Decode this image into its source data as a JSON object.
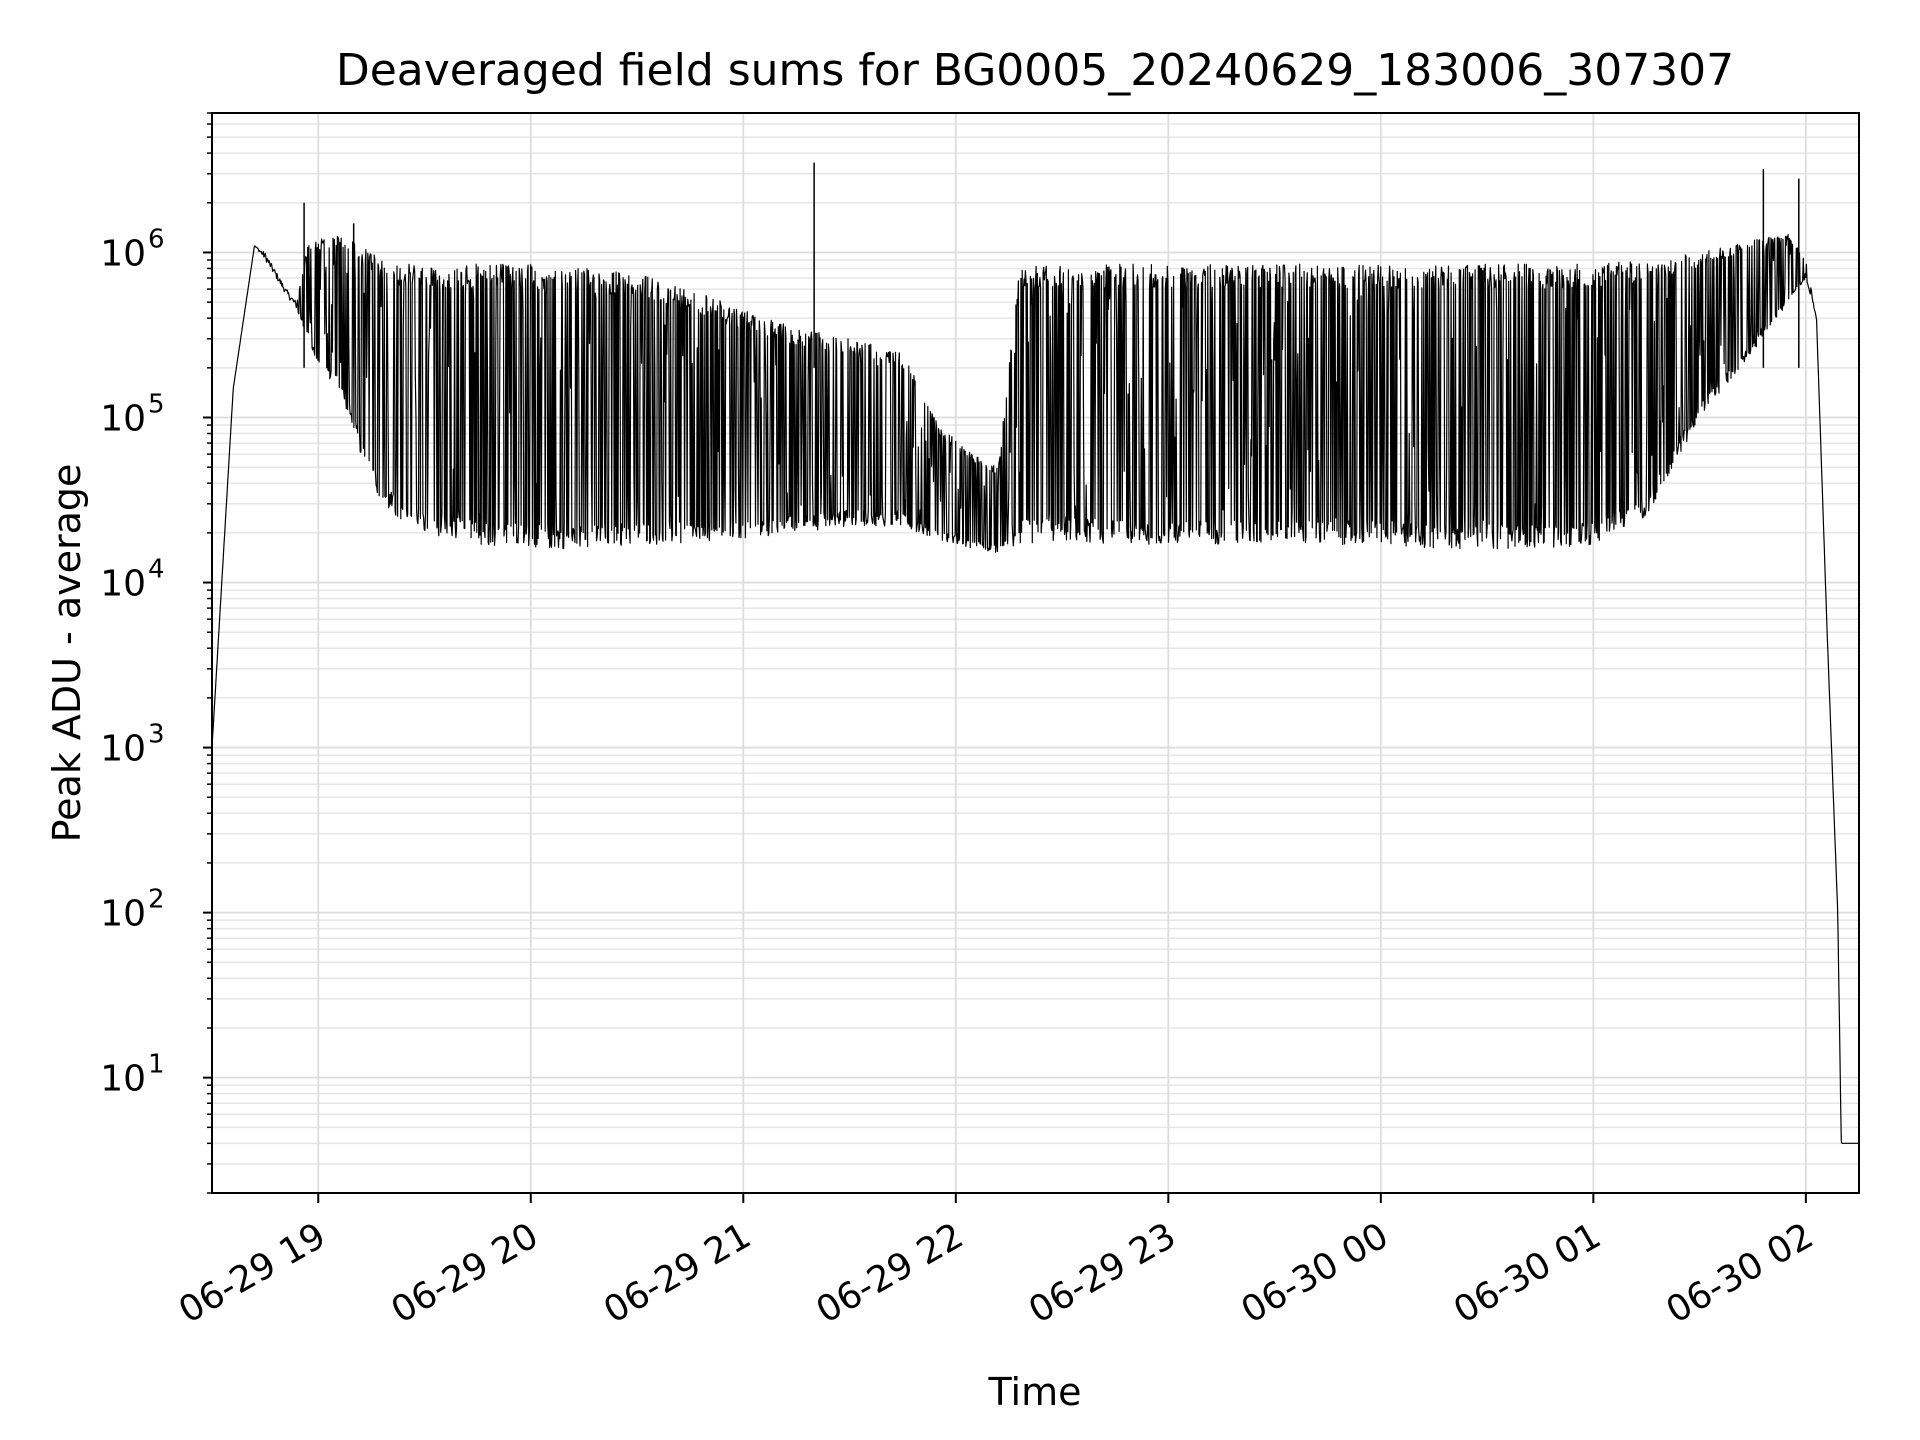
{
  "chart_data": {
    "type": "line",
    "title": "Deaveraged field sums for BG0005_20240629_183006_307307",
    "xlabel": "Time",
    "ylabel": "Peak ADU - average",
    "y_scale": "log",
    "ylim": [
      2,
      7000000
    ],
    "xlim": [
      "2024-06-29 18:30",
      "2024-06-30 02:15"
    ],
    "grid": true,
    "line_color": "#000000",
    "x_tick_labels": [
      "06-29 19",
      "06-29 20",
      "06-29 21",
      "06-29 22",
      "06-29 23",
      "06-30 00",
      "06-30 01",
      "06-30 02"
    ],
    "x_ticks": [
      "2024-06-29 19:00",
      "2024-06-29 20:00",
      "2024-06-29 21:00",
      "2024-06-29 22:00",
      "2024-06-29 23:00",
      "2024-06-30 00:00",
      "2024-06-30 01:00",
      "2024-06-30 02:00"
    ],
    "y_ticks": [
      {
        "base": "10",
        "exp": "1",
        "value": 10
      },
      {
        "base": "10",
        "exp": "2",
        "value": 100
      },
      {
        "base": "10",
        "exp": "3",
        "value": 1000
      },
      {
        "base": "10",
        "exp": "4",
        "value": 10000
      },
      {
        "base": "10",
        "exp": "5",
        "value": 100000
      },
      {
        "base": "10",
        "exp": "6",
        "value": 1000000
      }
    ],
    "series": [
      {
        "x": [
          "2024-06-29 18:30",
          "2024-06-29 18:36",
          "2024-06-29 18:42",
          "2024-06-29 18:45",
          "2024-06-29 18:51",
          "2024-06-29 18:54",
          "2024-06-29 18:57",
          "2024-06-29 19:00",
          "2024-06-29 19:06",
          "2024-06-29 19:12",
          "2024-06-29 19:18",
          "2024-06-29 19:24",
          "2024-06-29 19:30",
          "2024-06-29 19:45",
          "2024-06-29 20:00",
          "2024-06-29 20:15",
          "2024-06-29 20:30",
          "2024-06-29 20:45",
          "2024-06-29 21:00",
          "2024-06-29 21:15",
          "2024-06-29 21:30",
          "2024-06-29 21:45",
          "2024-06-29 21:55",
          "2024-06-29 22:05",
          "2024-06-29 22:12",
          "2024-06-29 22:18",
          "2024-06-29 22:30",
          "2024-06-29 22:45",
          "2024-06-29 23:00",
          "2024-06-29 23:15",
          "2024-06-29 23:30",
          "2024-06-29 23:45",
          "2024-06-30 00:00",
          "2024-06-30 00:15",
          "2024-06-30 00:30",
          "2024-06-30 00:45",
          "2024-06-30 01:00",
          "2024-06-30 01:15",
          "2024-06-30 01:30",
          "2024-06-30 01:45",
          "2024-06-30 01:55",
          "2024-06-30 02:00",
          "2024-06-30 02:03",
          "2024-06-30 02:06",
          "2024-06-30 02:09",
          "2024-06-30 02:10",
          "2024-06-30 02:15"
        ],
        "lower": [
          1000,
          150000,
          1100000,
          900000,
          550000,
          450000,
          300000,
          200000,
          150000,
          60000,
          30000,
          22000,
          20000,
          17000,
          16000,
          16000,
          17000,
          17000,
          18000,
          20000,
          22000,
          22000,
          18000,
          16000,
          15000,
          17000,
          18000,
          17000,
          17000,
          17000,
          17000,
          17000,
          17000,
          16000,
          16000,
          16000,
          17000,
          25000,
          100000,
          250000,
          500000,
          700000,
          400000,
          5000,
          100,
          4,
          4
        ],
        "upper": [
          1000,
          150000,
          1100000,
          1000000,
          600000,
          500000,
          1100000,
          1200000,
          1300000,
          1100000,
          900000,
          850000,
          850000,
          850000,
          850000,
          800000,
          750000,
          600000,
          450000,
          350000,
          300000,
          250000,
          90000,
          60000,
          50000,
          850000,
          850000,
          850000,
          850000,
          850000,
          850000,
          850000,
          850000,
          850000,
          850000,
          850000,
          850000,
          900000,
          1000000,
          1200000,
          1300000,
          900000,
          400000,
          5000,
          100,
          4,
          4
        ]
      }
    ],
    "spikes": [
      {
        "x": "2024-06-29 18:56",
        "y": 2000000
      },
      {
        "x": "2024-06-29 19:10",
        "y": 1500000
      },
      {
        "x": "2024-06-29 21:20",
        "y": 3500000
      },
      {
        "x": "2024-06-30 01:48",
        "y": 3200000
      },
      {
        "x": "2024-06-30 01:58",
        "y": 2800000
      }
    ]
  }
}
